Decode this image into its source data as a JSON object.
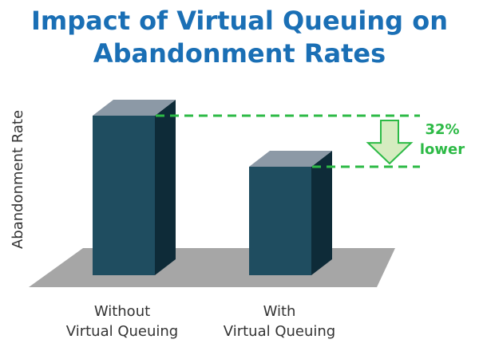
{
  "colors": {
    "title": "#1a6fb5",
    "bar_front": "#1f4d60",
    "bar_top": "#8c99a6",
    "bar_side": "#0e2b38",
    "floor": "#a6a6a6",
    "annotation": "#2dba46",
    "arrow_fill": "#d6ecc0",
    "label": "#333333"
  },
  "chart_data": {
    "type": "bar",
    "title_lines": [
      "Impact of Virtual Queuing on",
      "Abandonment Rates"
    ],
    "ylabel": "Abandonment Rate",
    "xlabel": "",
    "categories": [
      [
        "Without",
        "Virtual Queuing"
      ],
      [
        "With",
        "Virtual Queuing"
      ]
    ],
    "values": [
      100,
      68
    ],
    "ylim": [
      0,
      100
    ],
    "grid": false,
    "annotation": {
      "lines": [
        "32%",
        "lower"
      ],
      "icon": "down-arrow-icon"
    }
  }
}
